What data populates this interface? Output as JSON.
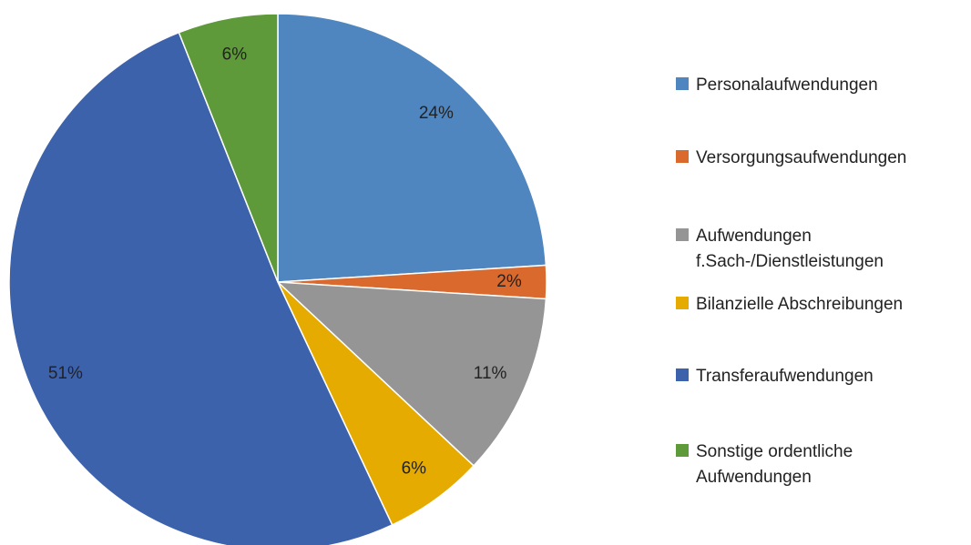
{
  "chart_data": {
    "type": "pie",
    "categories": [
      "Personalaufwendungen",
      "Versorgungsaufwendungen",
      "Aufwendungen f.Sach-/Dienstleistungen",
      "Bilanzielle Abschreibungen",
      "Transferaufwendungen",
      "Sonstige ordentliche Aufwendungen"
    ],
    "values": [
      24,
      2,
      11,
      6,
      51,
      6
    ],
    "value_labels": [
      "24%",
      "2%",
      "11%",
      "6%",
      "51%",
      "6%"
    ],
    "colors": [
      "#4f86c0",
      "#d9692c",
      "#959595",
      "#e6ab00",
      "#3d62ac",
      "#5f9a3a"
    ]
  }
}
